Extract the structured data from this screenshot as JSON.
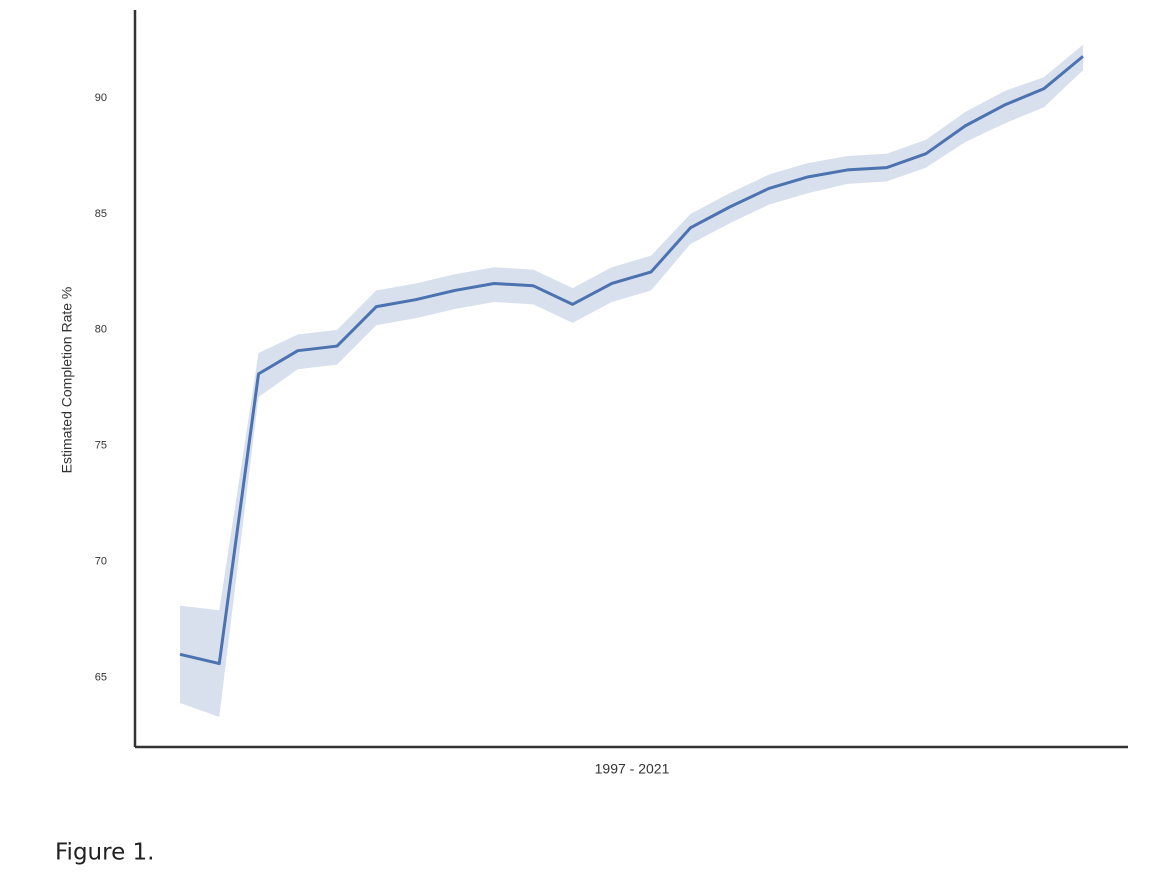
{
  "chart_data": {
    "type": "line",
    "xlabel": "1997 - 2021",
    "ylabel": "Estimated Completion Rate %",
    "caption": "Figure 1.",
    "categories": [
      null,
      null,
      null,
      null,
      null,
      null,
      null,
      null,
      null,
      null,
      null,
      null,
      null,
      null,
      null,
      null,
      null,
      null,
      null,
      null,
      null,
      null,
      null,
      null
    ],
    "series": [
      {
        "color": "#4c72b0",
        "values": [
          66.0,
          65.6,
          78.1,
          79.1,
          79.3,
          81.0,
          81.3,
          81.7,
          82.0,
          81.9,
          81.1,
          82.0,
          82.5,
          84.4,
          85.3,
          86.1,
          86.6,
          86.9,
          87.0,
          87.6,
          88.8,
          89.7,
          90.4,
          91.8
        ],
        "lower": [
          63.9,
          63.3,
          77.1,
          78.3,
          78.5,
          80.2,
          80.5,
          80.9,
          81.2,
          81.1,
          80.3,
          81.2,
          81.7,
          83.7,
          84.6,
          85.4,
          85.9,
          86.3,
          86.4,
          87.0,
          88.1,
          88.9,
          89.6,
          91.2
        ],
        "upper": [
          68.1,
          67.9,
          79.0,
          79.8,
          80.0,
          81.7,
          82.0,
          82.4,
          82.7,
          82.6,
          81.8,
          82.7,
          83.2,
          85.0,
          85.9,
          86.7,
          87.2,
          87.5,
          87.6,
          88.2,
          89.4,
          90.3,
          90.9,
          92.3
        ]
      }
    ],
    "ylim": [
      62.0,
      93.8
    ],
    "yticks": [
      65,
      70,
      75,
      80,
      85,
      90
    ]
  }
}
